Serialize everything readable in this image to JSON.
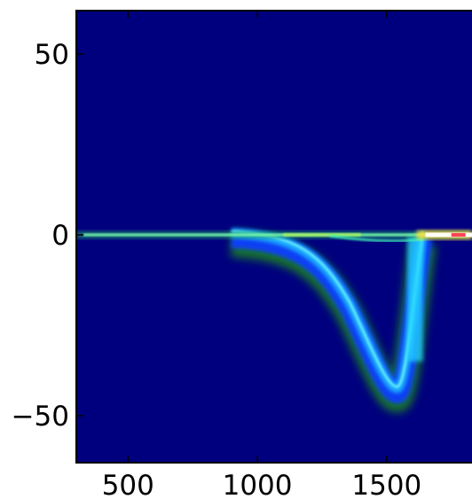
{
  "chart_data": {
    "type": "heatmap",
    "title": "",
    "xlabel": "",
    "ylabel": "",
    "xlim": [
      300,
      1830
    ],
    "ylim": [
      -63,
      62
    ],
    "x_ticks": [
      500,
      1000,
      1500
    ],
    "x_tick_labels": [
      "500",
      "1000",
      "1500"
    ],
    "y_ticks": [
      50,
      0,
      -50
    ],
    "y_tick_labels": [
      "50",
      "0",
      "−50"
    ],
    "colormap": "jet",
    "background_color": "#00007f",
    "grid": false,
    "legend": "none",
    "features": [
      {
        "name": "baseline",
        "x_range": [
          300,
          1830
        ],
        "y": 0,
        "peak_intensity_x": 1650
      },
      {
        "name": "dip-curve",
        "x_start": 900,
        "x_min": 1540,
        "y_min": -43,
        "x_end": 1640
      },
      {
        "name": "upper-secondary-branch",
        "x_start": 1280,
        "x_end": 1640,
        "y": -1.5
      }
    ]
  }
}
